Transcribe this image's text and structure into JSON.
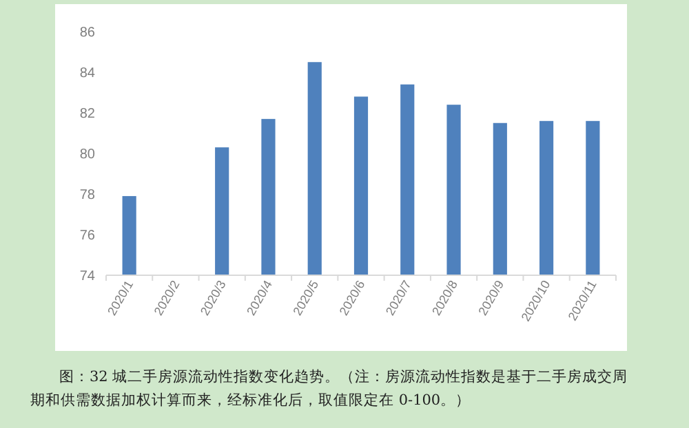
{
  "chart_data": {
    "type": "bar",
    "categories": [
      "2020/1",
      "2020/2",
      "2020/3",
      "2020/4",
      "2020/5",
      "2020/6",
      "2020/7",
      "2020/8",
      "2020/9",
      "2020/10",
      "2020/11"
    ],
    "values": [
      77.9,
      null,
      80.3,
      81.7,
      84.5,
      82.8,
      83.4,
      82.4,
      81.5,
      81.6,
      81.6
    ],
    "color": "#4f81bd",
    "ylim": [
      74,
      86
    ],
    "yticks": [
      74,
      76,
      78,
      80,
      82,
      84,
      86
    ],
    "grid": false,
    "annotations": [
      "图：32 城二手房源流动性指数变化趋势。（注：房源流动性指数是基于二手房成交周期和供需数据加权计算而来，经标准化后，取值限定在 0-100。）"
    ]
  }
}
